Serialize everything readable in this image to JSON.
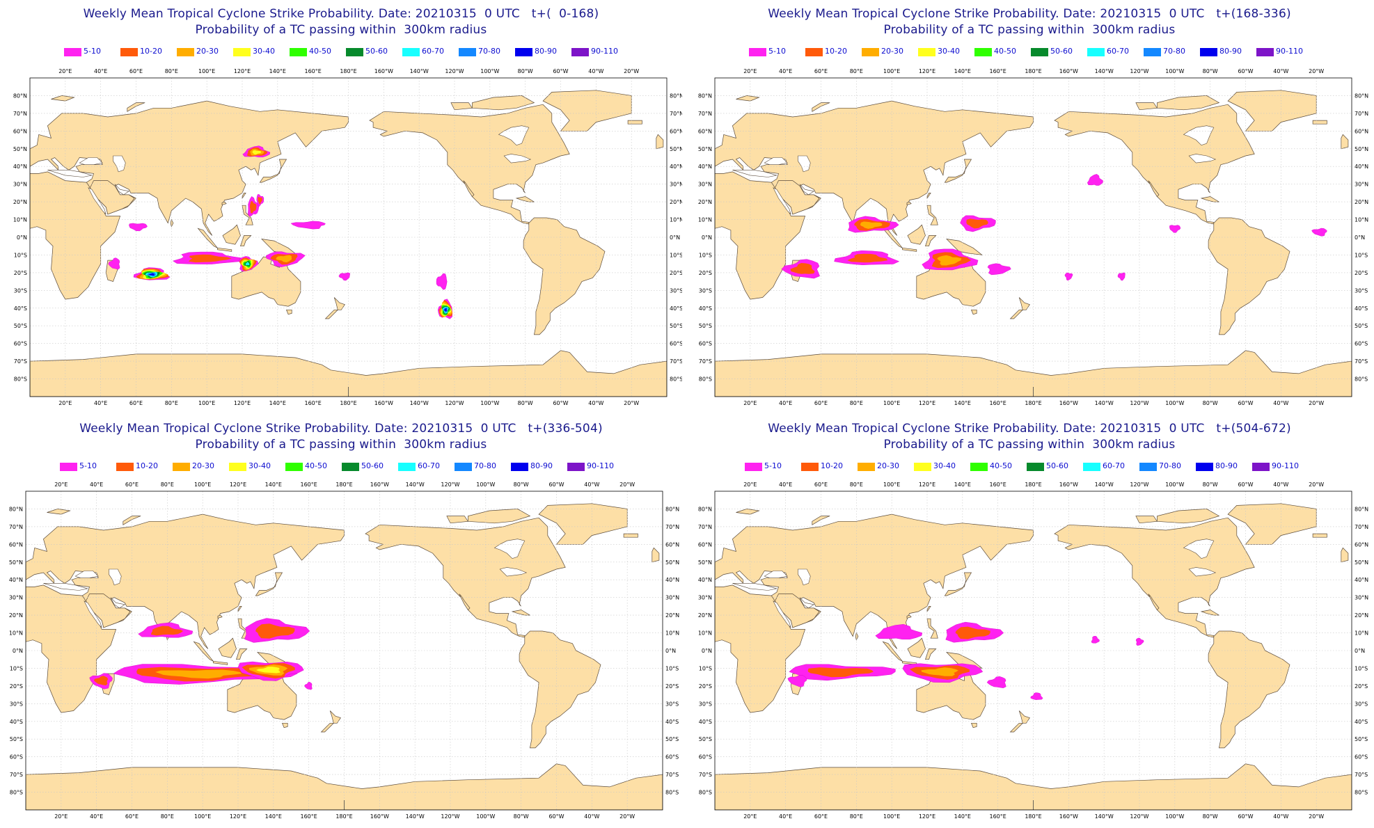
{
  "palette": {
    "land": "#fddfa6",
    "land_stroke": "#5a4a3a",
    "ocean": "#ffffff",
    "grid": "#c8c8c8",
    "title": "#1a1a8c",
    "legend_text": "#0b0bd0"
  },
  "legend": [
    {
      "label": "5-10",
      "color": "#ff22f0"
    },
    {
      "label": "10-20",
      "color": "#ff5a0a"
    },
    {
      "label": "20-30",
      "color": "#ffad00"
    },
    {
      "label": "30-40",
      "color": "#ffff1e"
    },
    {
      "label": "40-50",
      "color": "#2fff00"
    },
    {
      "label": "50-60",
      "color": "#078a2c"
    },
    {
      "label": "60-70",
      "color": "#18ffff"
    },
    {
      "label": "70-80",
      "color": "#1488ff"
    },
    {
      "label": "80-90",
      "color": "#0000ee"
    },
    {
      "label": "90-110",
      "color": "#7d14c8"
    }
  ],
  "axis": {
    "top_lon_labels": [
      "20°E",
      "40°E",
      "60°E",
      "80°E",
      "100°E",
      "120°E",
      "140°E",
      "160°E",
      "180°E",
      "160°W",
      "140°W",
      "120°W",
      "100°W",
      "80°W",
      "60°W",
      "40°W",
      "20°W"
    ],
    "bottom_lon_labels": [
      "20°E",
      "40°E",
      "60°E",
      "80°E",
      "100°E",
      "120°E",
      "140°E",
      "160°E",
      "180°E",
      "160°W",
      "140°W",
      "120°W",
      "100°W",
      "80°W",
      "60°W",
      "40°W",
      "20°W"
    ],
    "lat_labels": [
      "80°N",
      "70°N",
      "60°N",
      "50°N",
      "40°N",
      "30°N",
      "20°N",
      "10°N",
      "0°N",
      "10°S",
      "20°S",
      "30°S",
      "40°S",
      "50°S",
      "60°S",
      "70°S",
      "80°S"
    ]
  },
  "panels": [
    {
      "title": "Weekly Mean Tropical Cyclone Strike Probability. Date: 20210315  0 UTC   t+(  0-168)",
      "subtitle": "Probability of a TC passing within  300km radius",
      "blobs": [
        {
          "lon": 128,
          "lat": 48,
          "rx": 7,
          "ry": 3,
          "levels": 4
        },
        {
          "lon": 126,
          "lat": 17,
          "rx": 3,
          "ry": 5,
          "levels": 2
        },
        {
          "lon": 130,
          "lat": 21,
          "rx": 2,
          "ry": 3,
          "levels": 2
        },
        {
          "lon": 61,
          "lat": 6,
          "rx": 5,
          "ry": 2,
          "levels": 1
        },
        {
          "lon": 158,
          "lat": 7,
          "rx": 9,
          "ry": 2,
          "levels": 1
        },
        {
          "lon": 48,
          "lat": -15,
          "rx": 3,
          "ry": 3,
          "levels": 1
        },
        {
          "lon": 69,
          "lat": -21,
          "rx": 9,
          "ry": 3.5,
          "levels": 9
        },
        {
          "lon": 100,
          "lat": -12,
          "rx": 18,
          "ry": 3.5,
          "levels": 2
        },
        {
          "lon": 123,
          "lat": -15,
          "rx": 5,
          "ry": 4,
          "levels": 7
        },
        {
          "lon": 144,
          "lat": -12,
          "rx": 10,
          "ry": 4,
          "levels": 3
        },
        {
          "lon": 178,
          "lat": -22,
          "rx": 3,
          "ry": 2,
          "levels": 1
        },
        {
          "lon": -127,
          "lat": -25,
          "rx": 3,
          "ry": 4,
          "levels": 1
        },
        {
          "lon": -125,
          "lat": -41,
          "rx": 4,
          "ry": 5,
          "levels": 9
        }
      ]
    },
    {
      "title": "Weekly Mean Tropical Cyclone Strike Probability. Date: 20210315  0 UTC   t+(168-336)",
      "subtitle": "Probability of a TC passing within  300km radius",
      "blobs": [
        {
          "lon": -145,
          "lat": 32,
          "rx": 4,
          "ry": 3,
          "levels": 1
        },
        {
          "lon": 88,
          "lat": 7,
          "rx": 14,
          "ry": 4,
          "levels": 3
        },
        {
          "lon": 148,
          "lat": 8,
          "rx": 10,
          "ry": 4,
          "levels": 2
        },
        {
          "lon": -100,
          "lat": 5,
          "rx": 3,
          "ry": 2,
          "levels": 1
        },
        {
          "lon": -18,
          "lat": 3,
          "rx": 4,
          "ry": 2,
          "levels": 1
        },
        {
          "lon": 50,
          "lat": -18,
          "rx": 10,
          "ry": 5,
          "levels": 2
        },
        {
          "lon": 86,
          "lat": -12,
          "rx": 16,
          "ry": 4,
          "levels": 2
        },
        {
          "lon": 132,
          "lat": -13,
          "rx": 14,
          "ry": 6,
          "levels": 3
        },
        {
          "lon": 160,
          "lat": -18,
          "rx": 6,
          "ry": 3,
          "levels": 1
        },
        {
          "lon": -160,
          "lat": -22,
          "rx": 2,
          "ry": 2,
          "levels": 1
        },
        {
          "lon": -130,
          "lat": -22,
          "rx": 2,
          "ry": 2,
          "levels": 1
        }
      ]
    },
    {
      "title": "Weekly Mean Tropical Cyclone Strike Probability. Date: 20210315  0 UTC   t+(336-504)",
      "subtitle": "Probability of a TC passing within  300km radius",
      "blobs": [
        {
          "lon": 79,
          "lat": 11,
          "rx": 14,
          "ry": 4,
          "levels": 2
        },
        {
          "lon": 140,
          "lat": 11,
          "rx": 18,
          "ry": 6,
          "levels": 2
        },
        {
          "lon": 98,
          "lat": -13,
          "rx": 52,
          "ry": 5,
          "levels": 3
        },
        {
          "lon": 138,
          "lat": -11,
          "rx": 18,
          "ry": 5,
          "levels": 4
        },
        {
          "lon": 43,
          "lat": -17,
          "rx": 6,
          "ry": 4,
          "levels": 2
        },
        {
          "lon": 160,
          "lat": -20,
          "rx": 2,
          "ry": 2,
          "levels": 1
        }
      ]
    },
    {
      "title": "Weekly Mean Tropical Cyclone Strike Probability. Date: 20210315  0 UTC   t+(504-672)",
      "subtitle": "Probability of a TC passing within  300km radius",
      "blobs": [
        {
          "lon": 104,
          "lat": 10,
          "rx": 12,
          "ry": 4,
          "levels": 1
        },
        {
          "lon": 145,
          "lat": 10,
          "rx": 16,
          "ry": 5,
          "levels": 2
        },
        {
          "lon": 70,
          "lat": -12,
          "rx": 30,
          "ry": 4,
          "levels": 2
        },
        {
          "lon": 128,
          "lat": -12,
          "rx": 22,
          "ry": 5,
          "levels": 3
        },
        {
          "lon": 47,
          "lat": -17,
          "rx": 5,
          "ry": 3,
          "levels": 1
        },
        {
          "lon": 160,
          "lat": -18,
          "rx": 5,
          "ry": 3,
          "levels": 1
        },
        {
          "lon": -178,
          "lat": -26,
          "rx": 3,
          "ry": 2,
          "levels": 1
        },
        {
          "lon": -145,
          "lat": 6,
          "rx": 2,
          "ry": 2,
          "levels": 1
        },
        {
          "lon": -120,
          "lat": 5,
          "rx": 2,
          "ry": 2,
          "levels": 1
        }
      ]
    }
  ]
}
